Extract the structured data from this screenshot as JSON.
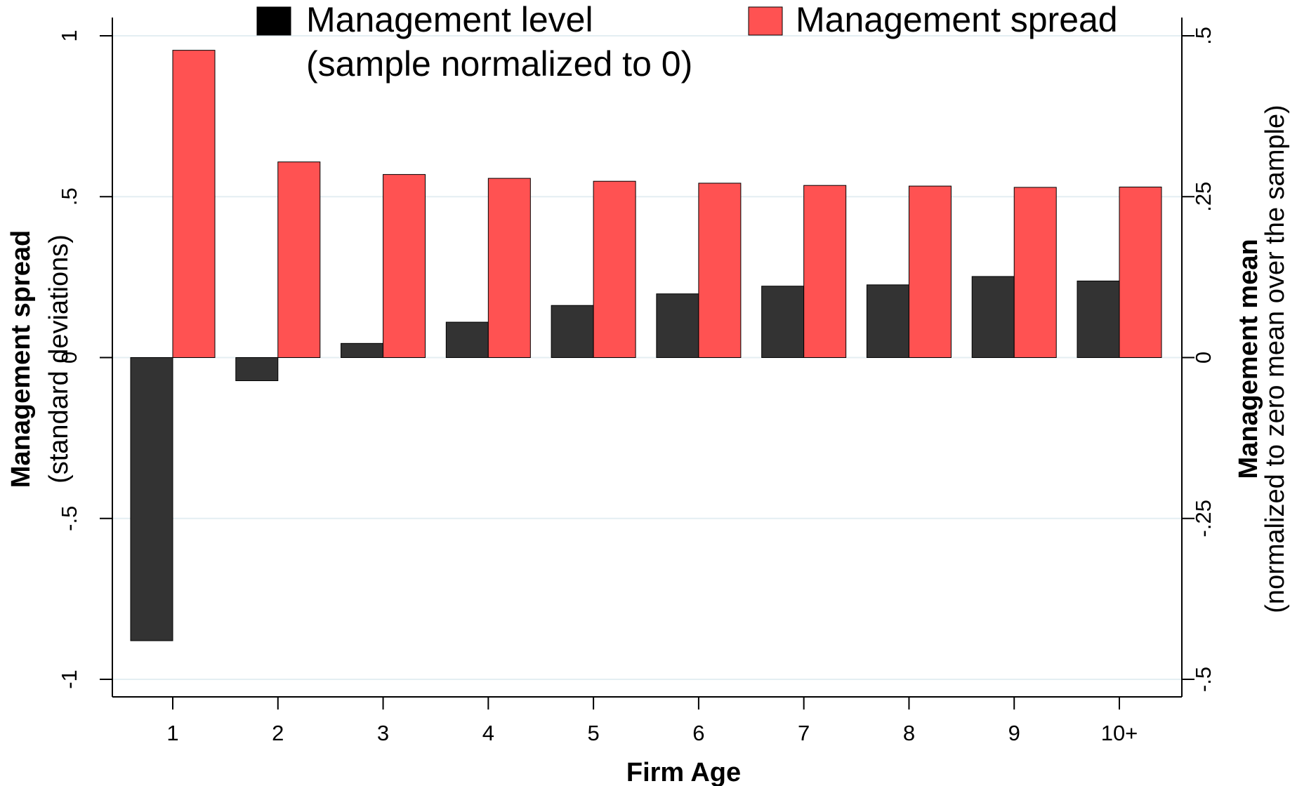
{
  "chart_data": {
    "type": "bar",
    "categories": [
      "1",
      "2",
      "3",
      "4",
      "5",
      "6",
      "7",
      "8",
      "9",
      "10+"
    ],
    "series": [
      {
        "name": "Management level",
        "name_line2": "(sample normalized to 0)",
        "axis": "right",
        "color": "#333333",
        "values": [
          -0.44,
          -0.036,
          0.022,
          0.055,
          0.081,
          0.099,
          0.111,
          0.113,
          0.126,
          0.119
        ]
      },
      {
        "name": "Management spread",
        "axis": "left",
        "color": "#ff5252",
        "values": [
          0.955,
          0.608,
          0.569,
          0.557,
          0.548,
          0.542,
          0.535,
          0.533,
          0.529,
          0.53
        ]
      }
    ],
    "xlabel": "Firm Age",
    "ylabel_left": {
      "bold": "Management spread",
      "normal": "(standard deviations)"
    },
    "ylabel_right": {
      "bold": "Management mean",
      "normal": "(normalized to zero mean over the sample)"
    },
    "ylim_left": [
      -1,
      1
    ],
    "ylim_right": [
      -0.5,
      0.5
    ],
    "yticks_left": [
      {
        "value": -1,
        "label": "-1"
      },
      {
        "value": -0.5,
        "label": "-.5"
      },
      {
        "value": 0,
        "label": "0"
      },
      {
        "value": 0.5,
        "label": ".5"
      },
      {
        "value": 1,
        "label": "1"
      }
    ],
    "yticks_right": [
      {
        "value": -0.5,
        "label": "-.5"
      },
      {
        "value": -0.25,
        "label": "-.25"
      },
      {
        "value": 0,
        "label": "0"
      },
      {
        "value": 0.25,
        "label": ".25"
      },
      {
        "value": 0.5,
        "label": ".5"
      }
    ],
    "grid": true,
    "grid_color": "#e4eef2",
    "legend_position": "top"
  }
}
